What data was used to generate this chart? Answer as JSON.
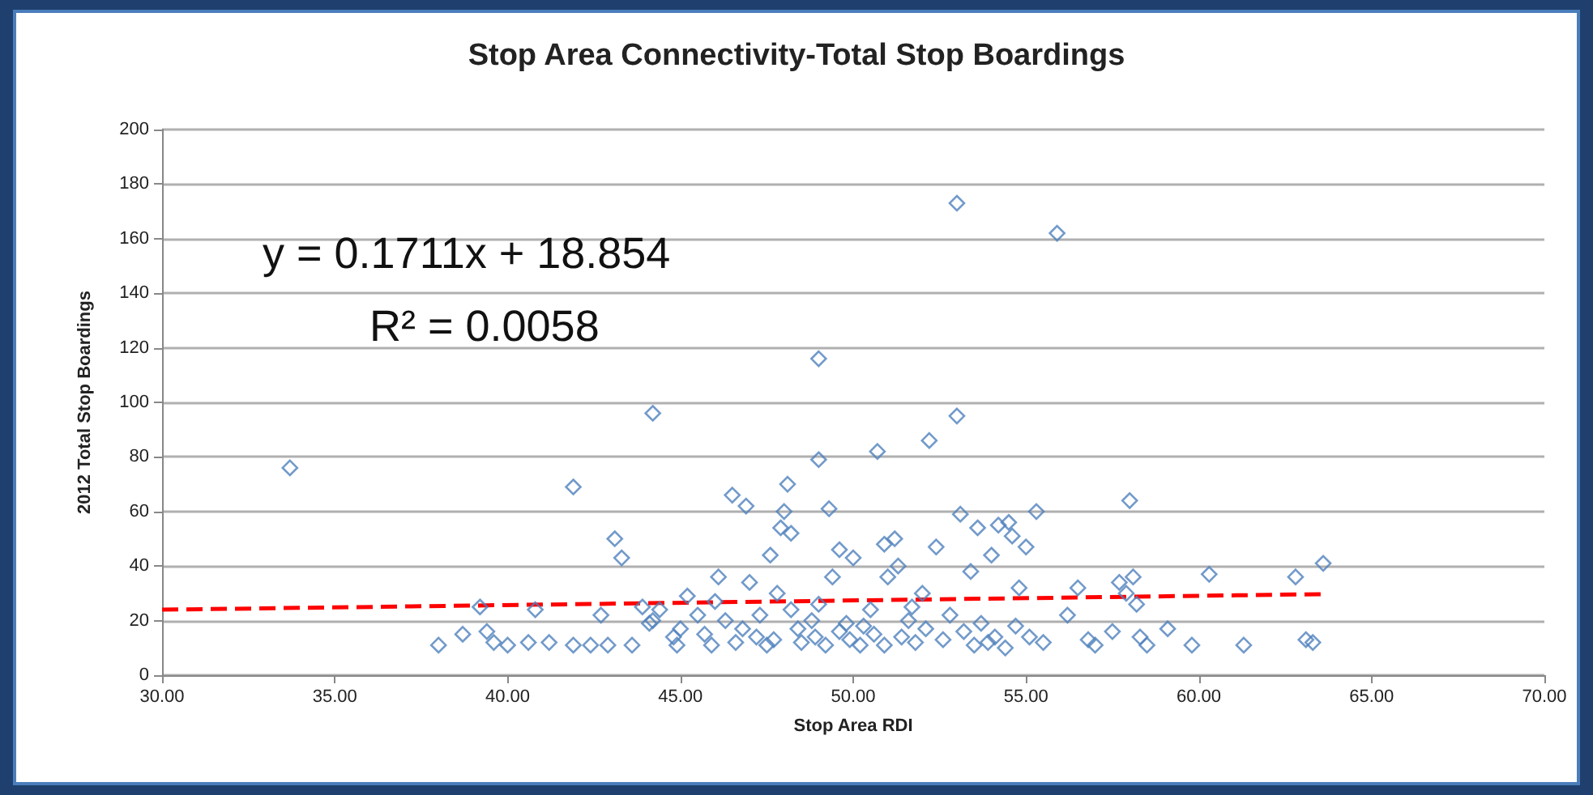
{
  "chart_data": {
    "type": "scatter",
    "title": "Stop Area Connectivity-Total Stop Boardings",
    "xlabel": "Stop Area RDI",
    "ylabel": "2012 Total Stop Boardings",
    "annotations": [
      "y = 0.1711x + 18.854",
      "R² = 0.0058"
    ],
    "xlim": [
      30,
      70
    ],
    "xticks": [
      {
        "value": 30,
        "label": "30.00"
      },
      {
        "value": 35,
        "label": "35.00"
      },
      {
        "value": 40,
        "label": "40.00"
      },
      {
        "value": 45,
        "label": "45.00"
      },
      {
        "value": 50,
        "label": "50.00"
      },
      {
        "value": 55,
        "label": "55.00"
      },
      {
        "value": 60,
        "label": "60.00"
      },
      {
        "value": 65,
        "label": "65.00"
      },
      {
        "value": 70,
        "label": "70.00"
      }
    ],
    "ylim": [
      0,
      200
    ],
    "yticks": [
      0,
      20,
      40,
      60,
      80,
      100,
      120,
      140,
      160,
      180,
      200
    ],
    "grid": "y",
    "marker": "diamond",
    "series": [
      {
        "color": "#4f81bd",
        "x": [
          33.7,
          38.0,
          38.7,
          39.2,
          39.4,
          39.6,
          40.0,
          40.6,
          40.8,
          41.2,
          41.9,
          41.9,
          42.4,
          42.7,
          42.9,
          43.1,
          43.3,
          43.6,
          43.9,
          44.1,
          44.2,
          44.2,
          44.8,
          44.9,
          45.0,
          45.2,
          45.9,
          46.0,
          46.1,
          46.3,
          46.5,
          46.6,
          46.9,
          47.0,
          47.2,
          47.5,
          47.6,
          47.8,
          47.9,
          48.0,
          48.1,
          48.2,
          48.2,
          48.5,
          48.8,
          49.0,
          49.0,
          49.0,
          49.3,
          49.4,
          49.6,
          49.8,
          50.0,
          50.2,
          50.5,
          50.7,
          50.9,
          51.0,
          51.2,
          51.3,
          51.6,
          51.8,
          52.0,
          52.2,
          52.4,
          52.6,
          53.0,
          53.0,
          53.1,
          53.4,
          53.6,
          53.7,
          53.9,
          54.0,
          54.2,
          54.5,
          54.6,
          54.8,
          55.0,
          55.3,
          55.5,
          55.9,
          56.2,
          56.5,
          56.8,
          57.0,
          57.5,
          57.7,
          57.9,
          58.0,
          58.1,
          58.2,
          58.3,
          58.5,
          59.1,
          59.8,
          60.3,
          61.3,
          62.8,
          63.1,
          63.3,
          63.6,
          46.8,
          47.3,
          47.7,
          48.4,
          48.9,
          49.2,
          49.6,
          49.9,
          50.3,
          50.6,
          50.9,
          51.4,
          51.7,
          52.1,
          52.8,
          53.2,
          53.5,
          54.1,
          54.4,
          54.7,
          55.1,
          44.4,
          45.5,
          45.7
        ],
        "values": [
          76,
          11,
          15,
          25,
          16,
          12,
          11,
          12,
          24,
          12,
          69,
          11,
          11,
          22,
          11,
          50,
          43,
          11,
          25,
          19,
          20,
          96,
          14,
          11,
          17,
          29,
          11,
          27,
          36,
          20,
          66,
          12,
          62,
          34,
          14,
          11,
          44,
          30,
          54,
          60,
          70,
          52,
          24,
          12,
          20,
          116,
          79,
          26,
          61,
          36,
          46,
          19,
          43,
          11,
          24,
          82,
          48,
          36,
          50,
          40,
          20,
          12,
          30,
          86,
          47,
          13,
          173,
          95,
          59,
          38,
          54,
          19,
          12,
          44,
          55,
          56,
          51,
          32,
          47,
          60,
          12,
          162,
          22,
          32,
          13,
          11,
          16,
          34,
          30,
          64,
          36,
          26,
          14,
          11,
          17,
          11,
          37,
          11,
          36,
          13,
          12,
          41,
          17,
          22,
          13,
          17,
          14,
          11,
          16,
          13,
          18,
          15,
          11,
          14,
          25,
          17,
          22,
          16,
          11,
          14,
          10,
          18,
          14,
          24,
          22,
          15
        ]
      },
      {
        "type": "line",
        "color": "#ff0000",
        "line_style": "dashed",
        "marker": "none",
        "x": [
          30,
          63.6
        ],
        "values": [
          24.0,
          29.7
        ]
      }
    ]
  }
}
